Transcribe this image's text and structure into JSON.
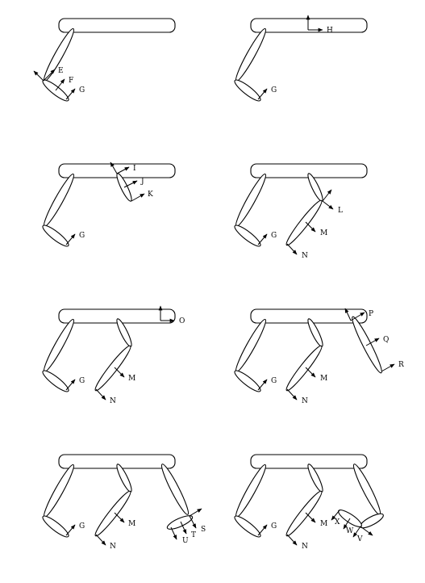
{
  "labels": {
    "E": "E",
    "F": "F",
    "G": "G",
    "H": "H",
    "I": "I",
    "J": "J",
    "K": "K",
    "L": "L",
    "M": "M",
    "N": "N",
    "O": "O",
    "P": "P",
    "Q": "Q",
    "R": "R",
    "S": "S",
    "T": "T",
    "U": "U",
    "V": "V",
    "W": "W",
    "X": "X"
  }
}
